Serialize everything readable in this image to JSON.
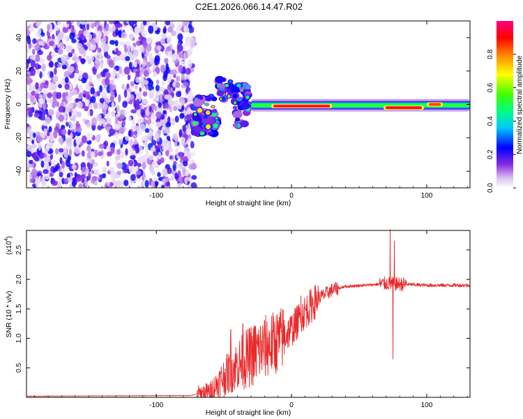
{
  "title": "C2E1.2026.066.14.47.R02",
  "chart_data": [
    {
      "type": "heatmap",
      "name": "spectrogram",
      "xlabel": "Height of straight line (km)",
      "ylabel": "Frequency (Hz)",
      "xlim": [
        -196,
        132
      ],
      "ylim": [
        -50,
        50
      ],
      "xticks": [
        -100,
        0,
        100
      ],
      "xtick_labels": [
        "-100",
        "0",
        "100"
      ],
      "yticks": [
        -40,
        -20,
        0,
        20,
        40
      ],
      "ytick_labels": [
        "-40",
        "-20",
        "0",
        "20",
        "40"
      ],
      "colorbar": {
        "label": "Normalized spectral amplitude",
        "range": [
          0,
          1
        ],
        "ticks": [
          0.0,
          0.2,
          0.4,
          0.6,
          0.8
        ],
        "tick_labels": [
          "0.0",
          "0.2",
          "0.4",
          "0.6",
          "0.8"
        ],
        "colors": [
          "#ffffff",
          "#d8c0f0",
          "#8a2be2",
          "#0000ff",
          "#00c0ff",
          "#00ff80",
          "#40ff00",
          "#ffff00",
          "#ff8000",
          "#ff0000",
          "#ff0080"
        ]
      },
      "features": [
        {
          "region": "noise",
          "x_range": [
            -196,
            -72
          ],
          "f_range": [
            -50,
            50
          ],
          "amplitude": 0.15
        },
        {
          "region": "onset-cluster-1",
          "x_range": [
            -72,
            -55
          ],
          "f_range": [
            -18,
            5
          ],
          "amplitude": 0.45
        },
        {
          "region": "onset-cluster-2",
          "x_range": [
            -55,
            -45
          ],
          "f_range": [
            3,
            15
          ],
          "amplitude": 0.45
        },
        {
          "region": "onset-cluster-3",
          "x_range": [
            -42,
            -32
          ],
          "f_range": [
            -13,
            12
          ],
          "amplitude": 0.4
        },
        {
          "region": "band",
          "x_range": [
            -30,
            132
          ],
          "f_range": [
            -3,
            2
          ],
          "amplitude": 0.55
        },
        {
          "region": "band-peak-1",
          "x_range": [
            -15,
            30
          ],
          "f_range": [
            -2,
            0
          ],
          "amplitude": 0.95
        },
        {
          "region": "band-peak-2",
          "x_range": [
            68,
            98
          ],
          "f_range": [
            -3,
            -1
          ],
          "amplitude": 0.95
        },
        {
          "region": "band-peak-3",
          "x_range": [
            100,
            112
          ],
          "f_range": [
            -1,
            1
          ],
          "amplitude": 0.85
        }
      ]
    },
    {
      "type": "line",
      "name": "snr",
      "xlabel": "Height of straight line (km)",
      "ylabel": "SNR (10 * v/v)",
      "y_multiplier_label": "(x10",
      "y_multiplier_exp": "4",
      "y_multiplier_close": ")",
      "xlim": [
        -196,
        132
      ],
      "ylim": [
        0,
        2.83
      ],
      "xticks": [
        -100,
        0,
        100
      ],
      "xtick_labels": [
        "-100",
        "0",
        "100"
      ],
      "yticks": [
        0.5,
        1.0,
        1.5,
        2.0,
        2.5
      ],
      "ytick_labels": [
        "0.5",
        "1.0",
        "1.5",
        "2.0",
        "2.5"
      ],
      "color": "#e8282a",
      "envelope": [
        {
          "x": -196,
          "y": 0.02
        },
        {
          "x": -75,
          "y": 0.03
        },
        {
          "x": -60,
          "y": 0.1
        },
        {
          "x": -50,
          "y": 0.35
        },
        {
          "x": -40,
          "y": 0.55
        },
        {
          "x": -30,
          "y": 0.7
        },
        {
          "x": -20,
          "y": 0.85
        },
        {
          "x": -10,
          "y": 0.95
        },
        {
          "x": 0,
          "y": 1.15
        },
        {
          "x": 10,
          "y": 1.45
        },
        {
          "x": 20,
          "y": 1.68
        },
        {
          "x": 30,
          "y": 1.82
        },
        {
          "x": 40,
          "y": 1.88
        },
        {
          "x": 60,
          "y": 1.91
        },
        {
          "x": 70,
          "y": 1.93
        },
        {
          "x": 80,
          "y": 1.92
        },
        {
          "x": 100,
          "y": 1.9
        },
        {
          "x": 132,
          "y": 1.9
        }
      ],
      "spikes": [
        {
          "x": -45,
          "y": 1.15
        },
        {
          "x": -36,
          "y": 1.25
        },
        {
          "x": -27,
          "y": 1.2
        },
        {
          "x": 7,
          "y": 1.72
        },
        {
          "x": 73,
          "y": 2.85
        },
        {
          "x": 75,
          "y": 0.65
        },
        {
          "x": 76,
          "y": 2.65
        }
      ]
    }
  ]
}
